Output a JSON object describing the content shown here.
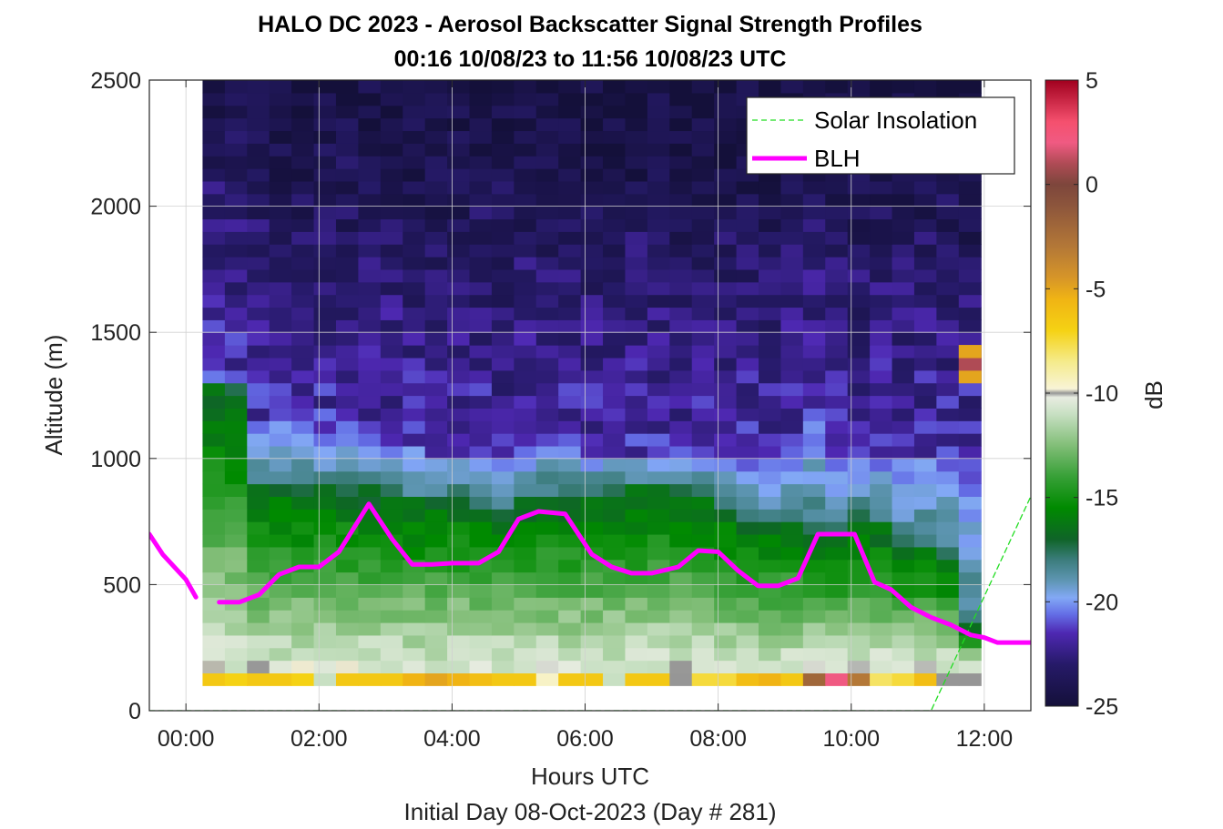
{
  "chart_data": {
    "type": "heatmap",
    "title": "HALO DC 2023 - Aerosol Backscatter Signal Strength Profiles",
    "subtitle": "00:16 10/08/23 to 11:56 10/08/23  UTC",
    "xlabel": "Hours UTC",
    "xlabel2": "Initial Day 08-Oct-2023 (Day # 281)",
    "ylabel": "Altitude (m)",
    "xlim": [
      -0.55,
      12.7
    ],
    "ylim": [
      0,
      2500
    ],
    "x_ticks": [
      {
        "value": 0,
        "label": "00:00"
      },
      {
        "value": 2,
        "label": "02:00"
      },
      {
        "value": 4,
        "label": "04:00"
      },
      {
        "value": 6,
        "label": "06:00"
      },
      {
        "value": 8,
        "label": "08:00"
      },
      {
        "value": 10,
        "label": "10:00"
      },
      {
        "value": 12,
        "label": "12:00"
      }
    ],
    "y_ticks": [
      {
        "value": 0,
        "label": "0"
      },
      {
        "value": 500,
        "label": "500"
      },
      {
        "value": 1000,
        "label": "1000"
      },
      {
        "value": 1500,
        "label": "1500"
      },
      {
        "value": 2000,
        "label": "2000"
      },
      {
        "value": 2500,
        "label": "2500"
      }
    ],
    "grid": true,
    "legend_placement": "top-right",
    "colorbar": {
      "label": "dB",
      "range": [
        -25,
        5
      ],
      "ticks": [
        {
          "value": 5,
          "label": "5"
        },
        {
          "value": 0,
          "label": "0"
        },
        {
          "value": -5,
          "label": "-5"
        },
        {
          "value": -10,
          "label": "-10"
        },
        {
          "value": -15,
          "label": "-15"
        },
        {
          "value": -20,
          "label": "-20"
        },
        {
          "value": -25,
          "label": "-25"
        }
      ]
    },
    "heatmap": {
      "x_start": 0.25,
      "x_end": 11.95,
      "columns": 35,
      "altitude_bins_bottom_m": [
        100,
        150,
        200,
        250,
        300,
        350,
        400,
        450,
        500,
        550,
        600,
        650,
        700,
        750,
        800,
        850,
        900,
        950,
        1000,
        1050,
        1100,
        1150,
        1200,
        1250,
        1300,
        1350,
        1400,
        1450,
        1500,
        1550,
        1600,
        1650,
        1700,
        1750,
        1800,
        1850,
        1900,
        1950,
        2000,
        2050,
        2100,
        2150,
        2200,
        2250,
        2300,
        2350,
        2400,
        2450
      ],
      "gradient_top_m": [
        1300,
        1280,
        1140,
        1120,
        1090,
        1080,
        1070,
        1070,
        1050,
        1020,
        1000,
        1000,
        1010,
        980,
        1020,
        1040,
        1020,
        1000,
        1000,
        1000,
        990,
        980,
        990,
        970,
        980,
        980,
        1020,
        1130,
        980,
        960,
        990,
        990,
        980,
        970,
        880
      ],
      "green_top_m": [
        1280,
        1260,
        900,
        880,
        860,
        860,
        870,
        860,
        830,
        820,
        830,
        850,
        800,
        790,
        820,
        850,
        850,
        850,
        860,
        860,
        860,
        860,
        850,
        800,
        740,
        720,
        730,
        700,
        680,
        760,
        720,
        620,
        650,
        570,
        310
      ],
      "surface_layer_dB": [
        -6.5,
        -7,
        -6.5,
        -6.5,
        -7,
        -11,
        -6.5,
        -6.5,
        -6.5,
        -5.5,
        -5,
        -5.5,
        -6,
        -6.5,
        -6.5,
        -9.5,
        -6.5,
        -6.5,
        -11,
        -6.5,
        -6.5,
        -10,
        -7.5,
        -7.5,
        -6,
        -5.5,
        -6.5,
        -2,
        2,
        -3,
        -8,
        -7.5,
        -6,
        -10,
        -10
      ],
      "elevated_cells": [
        {
          "x_index": 34,
          "altitude_bottom_m": 1250,
          "value_dB": -21
        },
        {
          "x_index": 34,
          "altitude_bottom_m": 1300,
          "value_dB": -5
        },
        {
          "x_index": 34,
          "altitude_bottom_m": 1350,
          "value_dB": 1
        },
        {
          "x_index": 34,
          "altitude_bottom_m": 1400,
          "value_dB": -5
        }
      ]
    },
    "series": [
      {
        "name": "Solar Insolation",
        "style": "dashed",
        "color": "#22dd22",
        "x": [
          -0.55,
          11.2,
          12.7
        ],
        "y": [
          0,
          0,
          850
        ]
      },
      {
        "name": "BLH",
        "style": "solid",
        "color": "#ff00ff",
        "segments": [
          {
            "x": [
              -0.55,
              -0.35,
              0.0,
              0.15
            ],
            "y": [
              700,
              620,
              520,
              450
            ]
          },
          {
            "x": [
              0.5,
              0.8,
              1.1,
              1.4,
              1.7,
              2.0,
              2.3,
              2.75,
              3.1,
              3.4,
              3.7,
              4.0,
              4.4,
              4.7,
              5.0,
              5.3,
              5.7,
              6.1,
              6.4,
              6.7,
              7.0,
              7.4,
              7.7,
              8.0,
              8.3,
              8.6,
              8.9,
              9.2,
              9.5,
              9.75,
              10.05,
              10.35,
              10.6,
              10.9,
              11.2,
              11.5,
              11.8,
              12.0,
              12.2,
              12.5,
              12.7
            ],
            "y": [
              430,
              430,
              460,
              540,
              570,
              570,
              630,
              820,
              680,
              580,
              580,
              585,
              585,
              630,
              760,
              790,
              780,
              620,
              570,
              545,
              545,
              570,
              635,
              630,
              555,
              495,
              495,
              525,
              700,
              700,
              700,
              510,
              480,
              410,
              370,
              340,
              300,
              290,
              270,
              270,
              270
            ]
          }
        ]
      }
    ]
  }
}
